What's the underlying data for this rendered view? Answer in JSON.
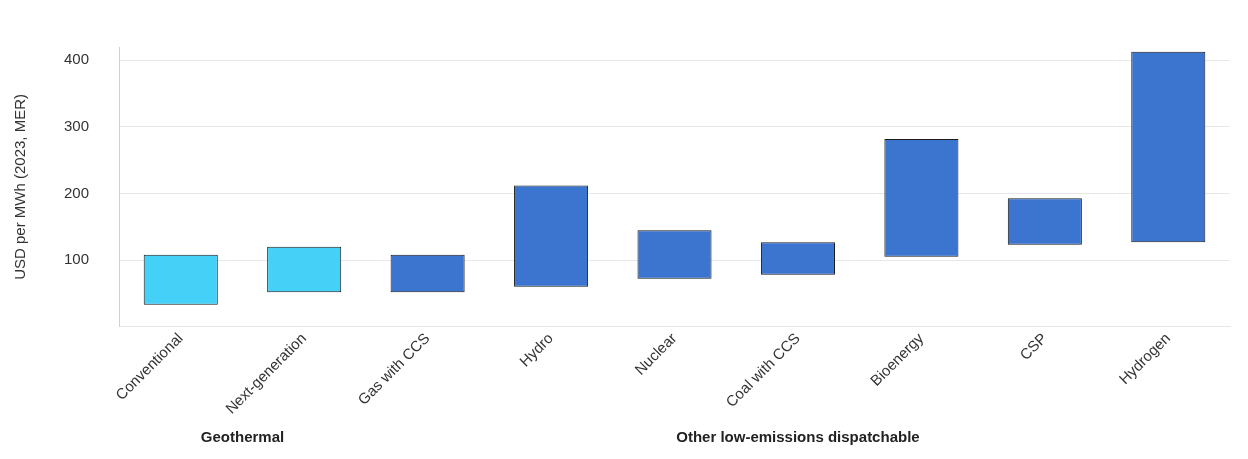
{
  "chart_data": {
    "type": "bar",
    "ylabel": "USD per MWh (2023, MER)",
    "categories": [
      "Conventional",
      "Next-generation",
      "Gas with CCS",
      "Hydro",
      "Nuclear",
      "Coal with CCS",
      "Bioenergy",
      "CSP",
      "Hydrogen"
    ],
    "base": [
      33,
      52,
      52,
      60,
      72,
      78,
      105,
      123,
      127
    ],
    "values": [
      75,
      68,
      56,
      152,
      73,
      49,
      177,
      70,
      286
    ],
    "colors": [
      "#45d0f8",
      "#45d0f8",
      "#3b75d0",
      "#3b75d0",
      "#3b75d0",
      "#3b75d0",
      "#3b75d0",
      "#3b75d0",
      "#3b75d0"
    ],
    "ylim": [
      0,
      420
    ],
    "yticks": [
      100,
      200,
      300,
      400
    ],
    "grid": "y",
    "annotations": [
      "Geothermal",
      "Other low-emissions dispatchable"
    ]
  }
}
